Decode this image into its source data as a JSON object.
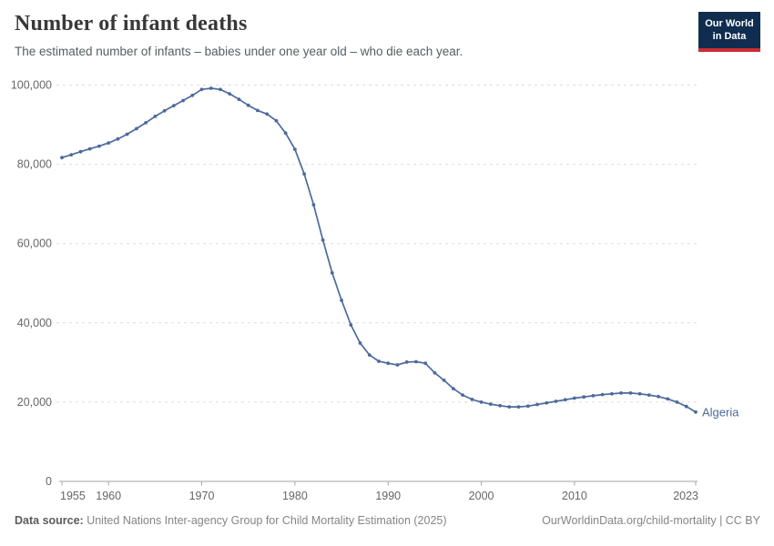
{
  "header": {
    "title": "Number of infant deaths",
    "subtitle": "The estimated number of infants – babies under one year old – who die each year.",
    "logo": {
      "line1": "Our World",
      "line2": "in Data"
    }
  },
  "footer": {
    "source_label": "Data source:",
    "source_text": " United Nations Inter-agency Group for Child Mortality Estimation (2025)",
    "link_text": "OurWorldinData.org/child-mortality | CC BY"
  },
  "colors": {
    "line": "#4c6a9c",
    "grid": "#dcdcdc",
    "axis": "#a5a5a5",
    "tick_label": "#666666",
    "logo_bg": "#102d50",
    "logo_red": "#cc2b36"
  },
  "chart_data": {
    "type": "line",
    "title": "Number of infant deaths",
    "subtitle": "The estimated number of infants – babies under one year old – who die each year.",
    "xlabel": "",
    "ylabel": "",
    "xlim": [
      1955,
      2023
    ],
    "ylim": [
      0,
      100000
    ],
    "xticks": [
      1955,
      1960,
      1970,
      1980,
      1990,
      2000,
      2010,
      2023
    ],
    "yticks": [
      0,
      20000,
      40000,
      60000,
      80000,
      100000
    ],
    "ytick_labels": [
      "0",
      "20,000",
      "40,000",
      "60,000",
      "80,000",
      "100,000"
    ],
    "grid": "horizontal-dashed",
    "legend_position": "end-of-line-label",
    "x": [
      1955,
      1956,
      1957,
      1958,
      1959,
      1960,
      1961,
      1962,
      1963,
      1964,
      1965,
      1966,
      1967,
      1968,
      1969,
      1970,
      1971,
      1972,
      1973,
      1974,
      1975,
      1976,
      1977,
      1978,
      1979,
      1980,
      1981,
      1982,
      1983,
      1984,
      1985,
      1986,
      1987,
      1988,
      1989,
      1990,
      1991,
      1992,
      1993,
      1994,
      1995,
      1996,
      1997,
      1998,
      1999,
      2000,
      2001,
      2002,
      2003,
      2004,
      2005,
      2006,
      2007,
      2008,
      2009,
      2010,
      2011,
      2012,
      2013,
      2014,
      2015,
      2016,
      2017,
      2018,
      2019,
      2020,
      2021,
      2022,
      2023
    ],
    "series": [
      {
        "name": "Algeria",
        "color": "#4c6a9c",
        "values": [
          81700,
          82400,
          83200,
          83900,
          84600,
          85400,
          86400,
          87600,
          89000,
          90500,
          92100,
          93500,
          94800,
          96100,
          97400,
          98900,
          99200,
          98900,
          97800,
          96400,
          94900,
          93600,
          92700,
          91000,
          87900,
          83800,
          77600,
          69800,
          60900,
          52600,
          45700,
          39500,
          34900,
          31900,
          30300,
          29800,
          29400,
          30100,
          30200,
          29800,
          27400,
          25500,
          23400,
          21800,
          20700,
          20000,
          19500,
          19100,
          18800,
          18800,
          19000,
          19400,
          19800,
          20200,
          20600,
          21000,
          21300,
          21600,
          21900,
          22100,
          22300,
          22300,
          22100,
          21800,
          21400,
          20800,
          20000,
          18900,
          17500
        ]
      }
    ]
  }
}
